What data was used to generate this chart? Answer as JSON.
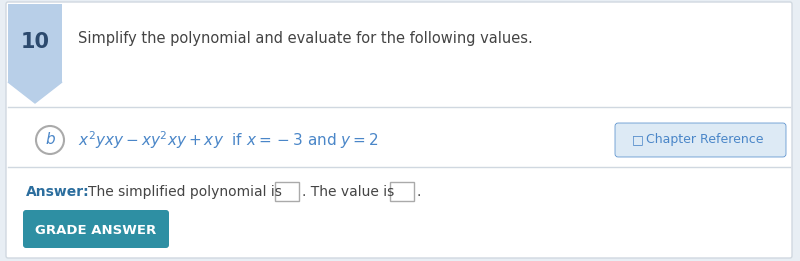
{
  "bg_color": "#e8eef4",
  "main_bg": "#ffffff",
  "question_number": "10",
  "number_bg": "#b8cfe8",
  "number_text_color": "#2c4a6e",
  "title_text": "Simplify the polynomial and evaluate for the following values.",
  "title_color": "#444444",
  "part_label": "b",
  "circle_color": "#aaaaaa",
  "math_color": "#4a86c8",
  "chapter_ref_text": "Chapter Reference",
  "chapter_ref_color": "#4a86c8",
  "chapter_ref_bg": "#ddeaf5",
  "answer_label": "Answer:",
  "answer_label_color": "#2c6e9e",
  "answer_text_pre": "The simplified polynomial is",
  "answer_text_mid": ". The value is",
  "answer_text_post": ".",
  "answer_text_color": "#444444",
  "button_text": "GRADE ANSWER",
  "button_bg": "#2e8fa3",
  "button_text_color": "#ffffff",
  "divider_color": "#d0d8e0"
}
